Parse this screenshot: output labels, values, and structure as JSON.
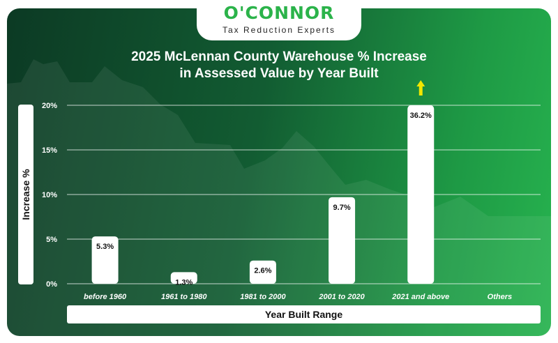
{
  "logo": {
    "name": "O'CONNOR",
    "tagline": "Tax Reduction Experts"
  },
  "colors": {
    "bar": "#ffffff",
    "background_dark": "#0c3a24",
    "background_light": "#27b34f",
    "arrow": "#f2e600",
    "gridline": "#ffffff"
  },
  "chart_data": {
    "type": "bar",
    "title": "2025 McLennan County Warehouse % Increase in Assessed Value by Year Built",
    "title_lines": [
      "2025 McLennan County Warehouse % Increase",
      "in Assessed Value by Year Built"
    ],
    "xlabel": "Year Built Range",
    "ylabel": "Increase %",
    "categories": [
      "before 1960",
      "1961 to 1980",
      "1981 to 2000",
      "2001 to 2020",
      "2021 and above",
      "Others"
    ],
    "values": [
      5.3,
      1.3,
      2.6,
      9.7,
      36.2,
      null
    ],
    "data_labels": [
      "5.3%",
      "1.3%",
      "2.6%",
      "9.7%",
      "36.2%",
      ""
    ],
    "ylim": [
      0,
      20
    ],
    "yticks": [
      0,
      5,
      10,
      15,
      20
    ],
    "ytick_labels": [
      "0%",
      "5%",
      "10%",
      "15%",
      "20%"
    ],
    "clipped_indicator": "up-arrow-icon",
    "grid": true,
    "legend": "none"
  }
}
